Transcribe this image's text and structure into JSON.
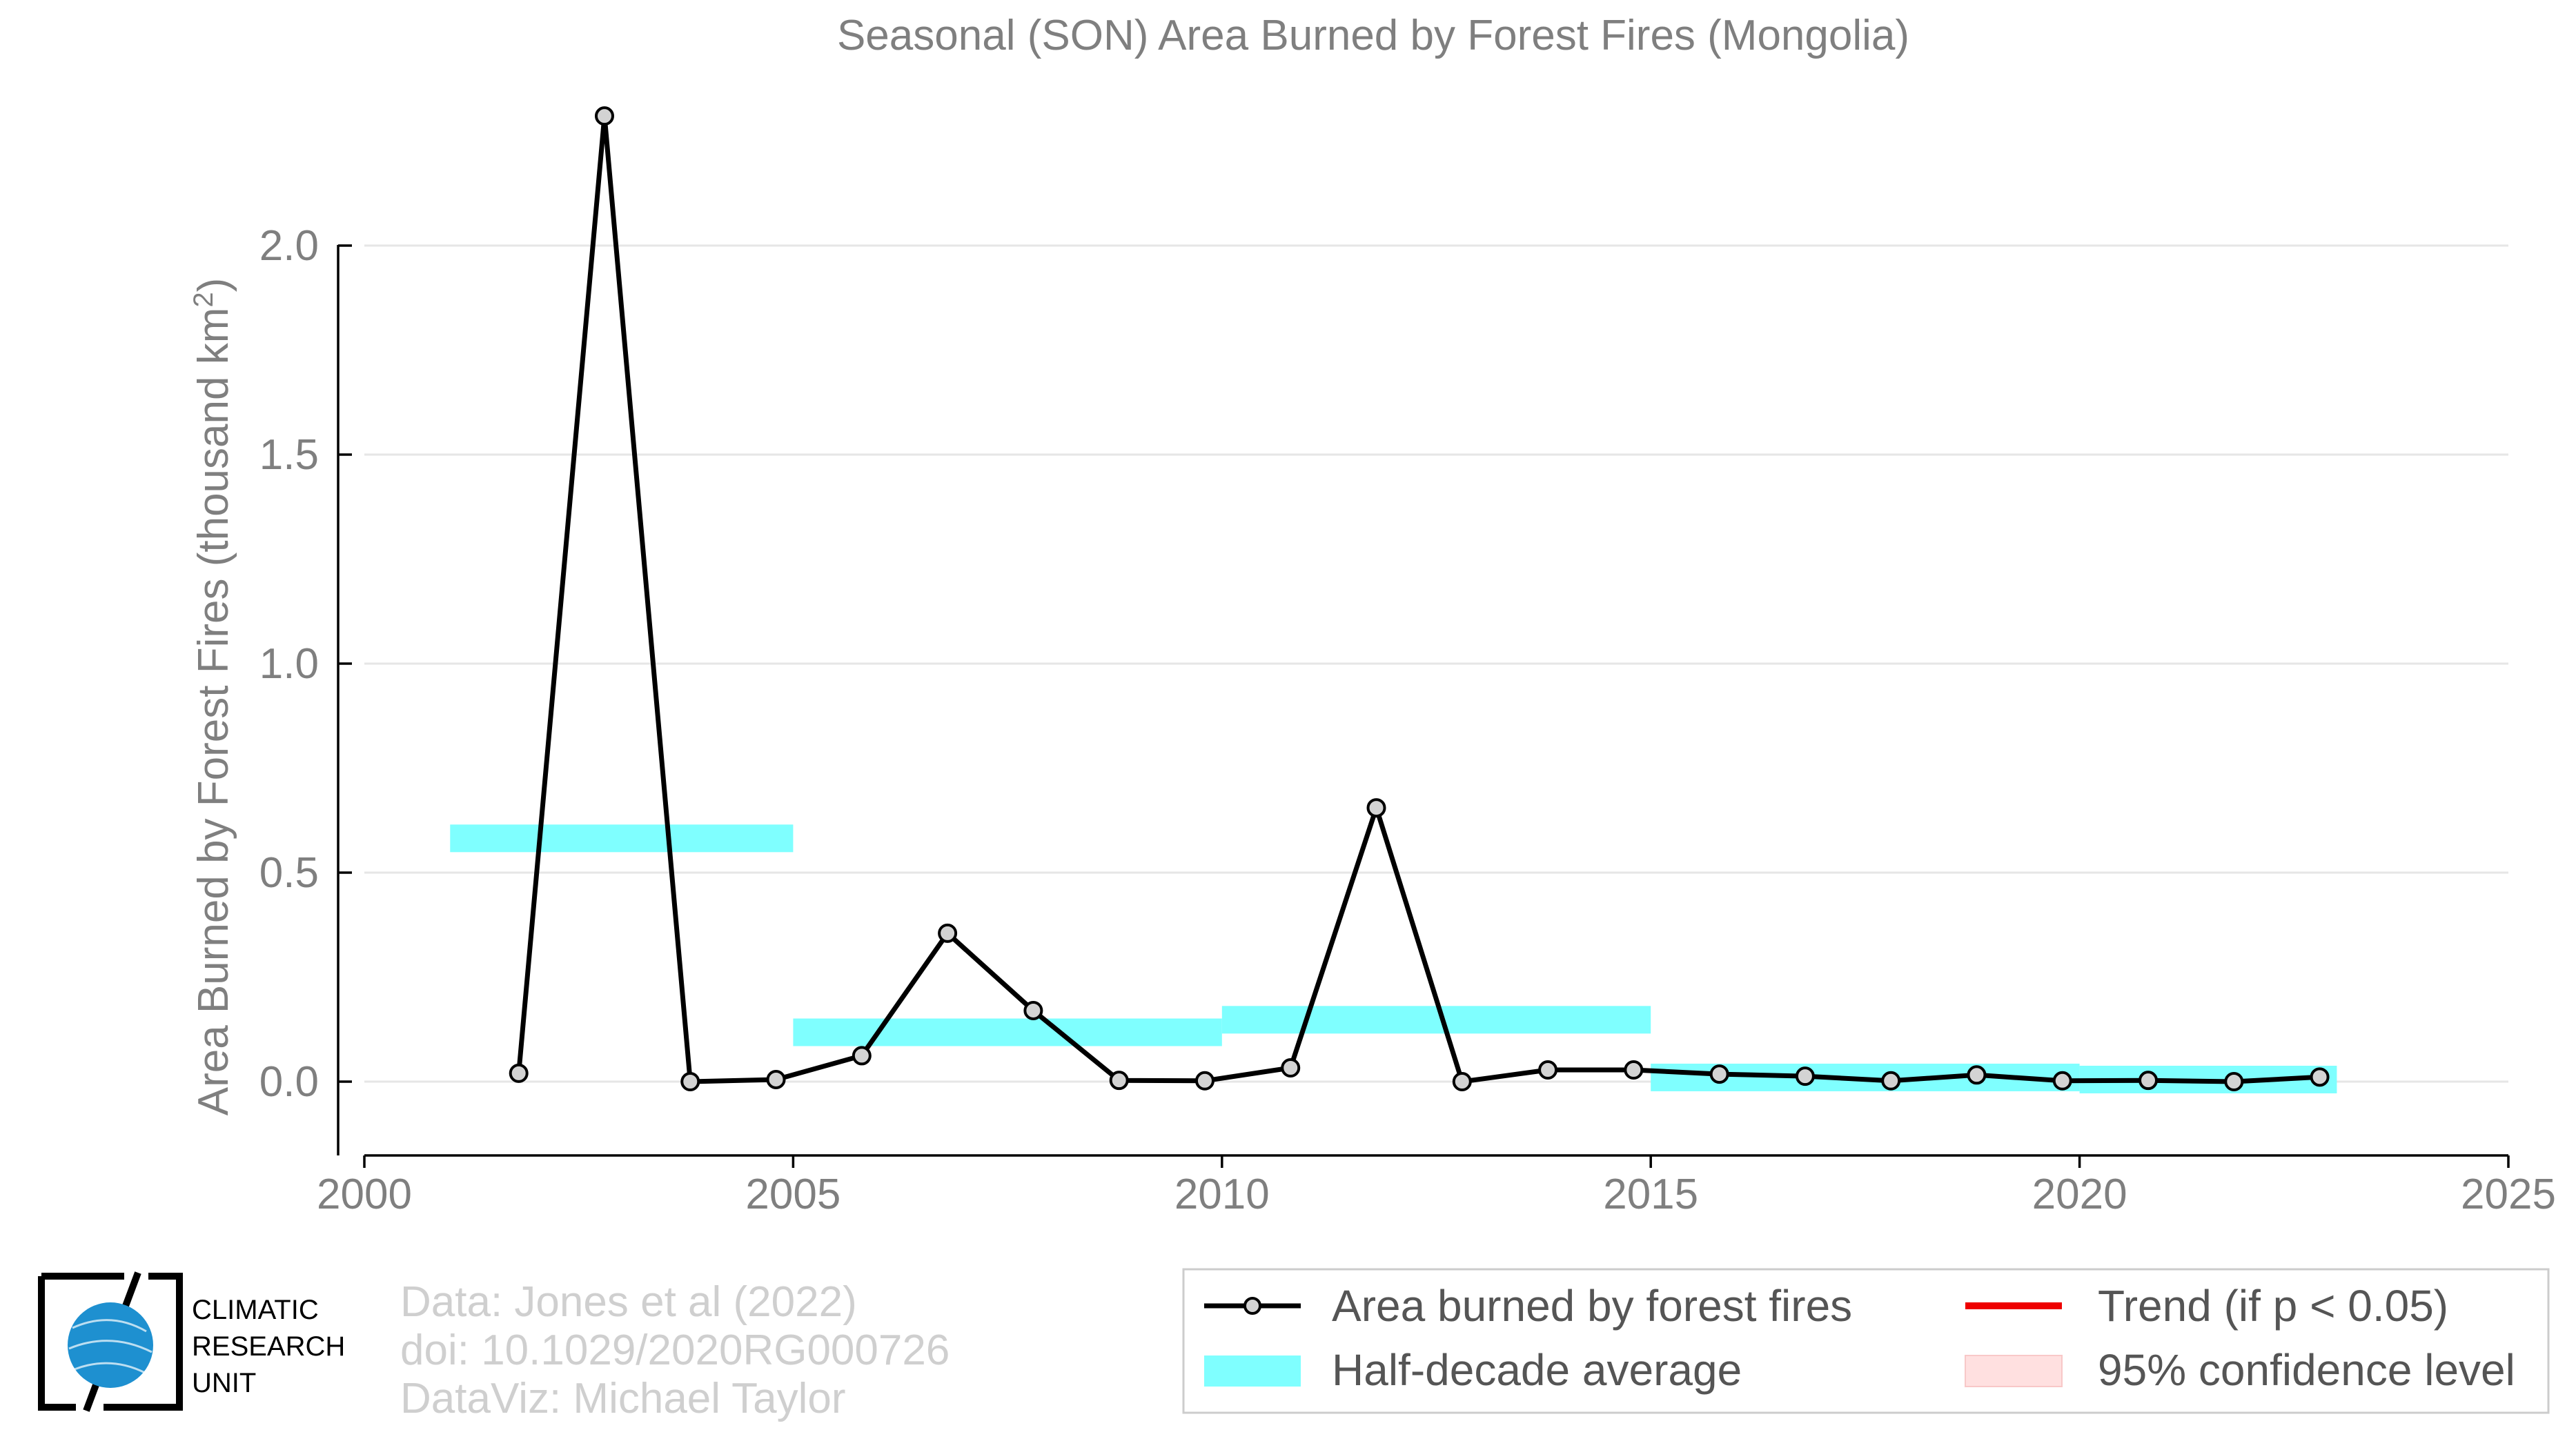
{
  "chart_data": {
    "type": "line",
    "title": "Seasonal (SON) Area Burned by Forest Fires (Mongolia)",
    "ylabel": "Area Burned by Forest Fires (thousand km",
    "ylabel_sup": "2",
    "ylabel_close": ")",
    "xlim": [
      2000,
      2025
    ],
    "ylim": [
      -0.18,
      2.3
    ],
    "xticks": [
      2000,
      2005,
      2010,
      2015,
      2020,
      2025
    ],
    "yticks": [
      0.0,
      0.5,
      1.0,
      1.5,
      2.0
    ],
    "ytick_labels": [
      "0.0",
      "0.5",
      "1.0",
      "1.5",
      "2.0"
    ],
    "grid": true,
    "series": [
      {
        "name": "Area burned by forest fires",
        "color": "#000000",
        "marker_fill": "#d3d3d3",
        "x": [
          2001.8,
          2002.8,
          2003.8,
          2004.8,
          2005.8,
          2006.8,
          2007.8,
          2008.8,
          2009.8,
          2010.8,
          2011.8,
          2012.8,
          2013.8,
          2014.8,
          2015.8,
          2016.8,
          2017.8,
          2018.8,
          2019.8,
          2020.8,
          2021.8,
          2022.8
        ],
        "y": [
          0.02,
          2.31,
          0.0,
          0.005,
          0.062,
          0.355,
          0.17,
          0.003,
          0.002,
          0.033,
          0.655,
          0.0,
          0.028,
          0.028,
          0.018,
          0.013,
          0.002,
          0.016,
          0.002,
          0.003,
          0.0,
          0.011
        ]
      }
    ],
    "half_decade_average": {
      "name": "Half-decade average",
      "color": "#7fffff",
      "segments": [
        {
          "x0": 2001.0,
          "x1": 2005.0,
          "y": 0.582
        },
        {
          "x0": 2005.0,
          "x1": 2010.0,
          "y": 0.118
        },
        {
          "x0": 2010.0,
          "x1": 2015.0,
          "y": 0.148
        },
        {
          "x0": 2015.0,
          "x1": 2020.0,
          "y": 0.01
        },
        {
          "x0": 2020.0,
          "x1": 2023.0,
          "y": 0.005
        }
      ]
    },
    "legend": {
      "placement": "bottom-right",
      "items": [
        {
          "label": "Area burned by forest fires",
          "kind": "line-marker",
          "color": "#000000"
        },
        {
          "label": "Trend (if p < 0.05)",
          "kind": "line",
          "color": "#ee0000"
        },
        {
          "label": "Half-decade average",
          "kind": "band",
          "color": "#7fffff"
        },
        {
          "label": "95% confidence level",
          "kind": "band",
          "color": "#ffe0e0"
        }
      ]
    }
  },
  "credits": {
    "line1": "Data: Jones et al (2022)",
    "line2": "doi: 10.1029/2020RG000726",
    "line3": "DataViz: Michael Taylor"
  },
  "logo": {
    "line1": "CLIMATIC",
    "line2": "RESEARCH",
    "line3": "UNIT",
    "globe_color": "#1e90d0"
  }
}
